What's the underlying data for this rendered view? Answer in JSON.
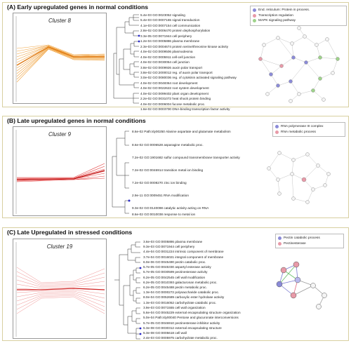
{
  "panels": [
    {
      "title": "(A) Early upregulated genes in normal conditions",
      "cluster": "Cluster 8",
      "terms": [
        "5.4e-03 GO:0023052 signaling",
        "5.4e-03 GO:0007165 signal transduction",
        "4.1e-03 GO:0007154 cell communication",
        "2.8e-02 GO:0006470 protein dephosphorylation",
        "3.3e-05 GO:0071944 cell periphery",
        "1.2e-04 GO:0005886 plasma membrane",
        "2.3e-03 GO:0004674 protein serine/threonine kinase activity",
        "4.0e-02 GO:0009506 plasmodesma",
        "4.0e-02 GO:0005911 cell-cell junction",
        "4.0e-02 GO:0030054 cell junction",
        "3.8e-02 GO:0009926 auxin polar transport",
        "3.8e-02 GO:2000012 reg. of auxin polar transport",
        "3.0e-02 GO:0080036 reg. of cytokinin activated signaling pathway",
        "4.0e-02 GO:0048364 root development",
        "4.0e-02 GO:0022622 root system development",
        "4.0e-02 GO:0099402 plant organ development",
        "2.2e-02 GO:0031072 heat shock protein binding",
        "4.0e-02 GO:0006004 fucose metabolic proc.",
        "1.6e-02 GO:0003700 DNA-binding transcription factor activity"
      ],
      "legend": [
        {
          "label": "End. reticulum: Protein in process.",
          "color": "#8b8bd8"
        },
        {
          "label": "Transcription regulation",
          "color": "#e89aa8"
        },
        {
          "label": "MAPK signaling pathway",
          "color": "#9ed38a"
        }
      ]
    },
    {
      "title": "(B) Late upregulated genes in normal conditions",
      "cluster": "Cluster 9",
      "terms": [
        "8.6e-02 Path:sly00250 Alanine aspartate and glutamate metabolism",
        "8.6e-02 GO:0006528 asparagine metabolic proc.",
        "7.2e-02 GO:1901682 sulfur compound transmembrane transporter activity",
        "7.2e-02 GO:0046914 transition metal ion binding",
        "7.2e-02 GO:0008270 zinc ion binding",
        "2.9e-11 GO:0009451 RNA modification",
        "9.3e-02 GO:0140098 catalytic activity acting on RNA",
        "8.6e-02 GO:0010038 response to metal ion"
      ],
      "legend": [
        {
          "label": "RNA polymerase III complex",
          "color": "#8b8bd8"
        },
        {
          "label": "RNA metabolic process",
          "color": "#e89aa8"
        }
      ]
    },
    {
      "title": "(C) Late Upregulated in stressed conditions",
      "cluster": "Cluster 19",
      "terms": [
        "3.6e-03 GO:0005886 plasma membrane",
        "9.3e-03 GO:0071944 cell periphery",
        "4.4e-04 GO:0031224 intrinsic component of membrane",
        "3.7e-04 GO:0016021 integral component of membrane",
        "6.0e-06 GO:0045490 pectin catabolic proc.",
        "5.7e-05 GO:0045330 aspartyl esterase activity",
        "5.7e-05 GO:0030599 pectinesterase activity",
        "6.2e-05 GO:0042545 cell wall modification",
        "6.2e-05 GO:0010393 galacturonan metabolic proc.",
        "6.2e-05 GO:0045488 pectin metabolic proc.",
        "1.3e-04 GO:0000272 polysaccharide catabolic proc.",
        "8.0e-04 GO:0052689 carboxylic ester hydrolase activity",
        "1.3e-03 GO:0016052 carbohydrate catabolic proc.",
        "3.9e-03 GO:0071555 cell wall organization",
        "5.6e-04 GO:0045229 external encapsulating structure organization",
        "5.0e-04 Path:sly00040 Pentose and glucuronate interconversions",
        "5.7e-05 GO:0046910 pectinesterase inhibitor activity",
        "5.3e-08 GO:0030312 external encapsulating structure",
        "5.3e-08 GO:0005618 cell wall",
        "2.4e-03 GO:0005975 carbohydrate metabolic proc."
      ],
      "legend": [
        {
          "label": "Pectin catabolic process",
          "color": "#8b8bd8"
        },
        {
          "label": "Pectinesterase",
          "color": "#e89aa8"
        }
      ]
    }
  ]
}
